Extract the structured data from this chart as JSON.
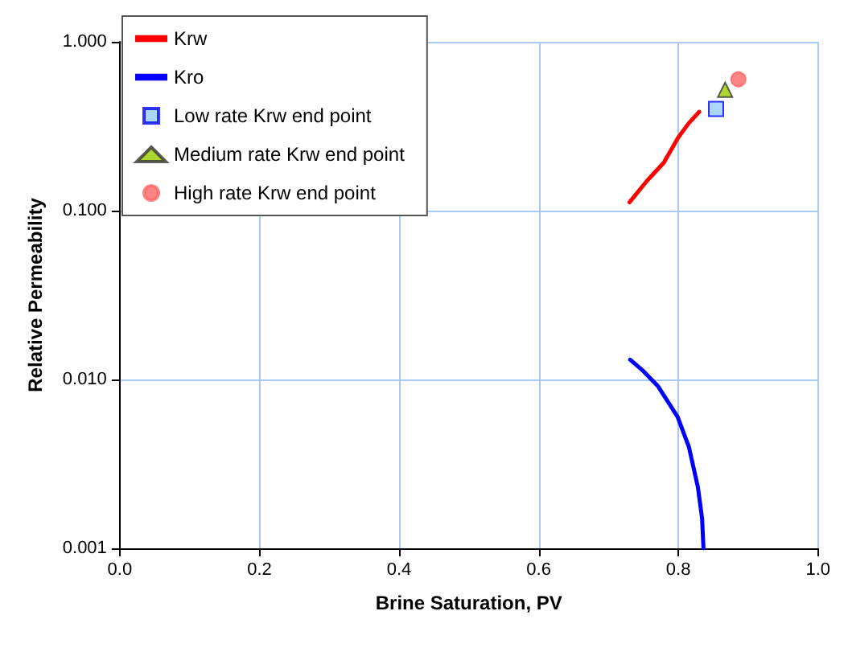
{
  "chart_data": {
    "type": "line",
    "xlabel": "Brine Saturation, PV",
    "ylabel": "Relative Permeability",
    "log": "y",
    "grid": true,
    "legend": "top left",
    "xlim": [
      0,
      1
    ],
    "xticks": [
      {
        "value": 0,
        "label": "0.0"
      },
      {
        "value": 0.2,
        "label": "0.2"
      },
      {
        "value": 0.4,
        "label": "0.4"
      },
      {
        "value": 0.6,
        "label": "0.6"
      },
      {
        "value": 0.8,
        "label": "0.8"
      },
      {
        "value": 1,
        "label": "1.0"
      }
    ],
    "ylim": [
      0.001,
      1
    ],
    "yticks": [
      {
        "value": 0.001,
        "label": "0.001"
      },
      {
        "value": 0.01,
        "label": "0.010"
      },
      {
        "value": 0.1,
        "label": "0.100"
      },
      {
        "value": 1,
        "label": "1.000"
      }
    ],
    "series": [
      {
        "name": "Krw",
        "color": "#ff0000",
        "marker": "none",
        "x": [
          0.73,
          0.755,
          0.779,
          0.8,
          0.815,
          0.83
        ],
        "values": [
          0.112,
          0.15,
          0.192,
          0.272,
          0.33,
          0.385
        ]
      },
      {
        "name": "Kro",
        "color": "#0000ff",
        "marker": "none",
        "x": [
          0.731,
          0.75,
          0.771,
          0.799,
          0.815,
          0.828,
          0.834,
          0.836
        ],
        "values": [
          0.0131,
          0.0112,
          0.0091,
          0.006,
          0.004,
          0.0023,
          0.0015,
          0.001
        ]
      },
      {
        "name": "Low rate Krw end point",
        "type": "scatter",
        "color": "#99ccff",
        "marker": "square",
        "x": [
          0.854
        ],
        "values": [
          0.4
        ]
      },
      {
        "name": "Medium rate Krw end point",
        "type": "scatter",
        "color": "#99cc00",
        "marker": "triangle",
        "x": [
          0.867
        ],
        "values": [
          0.52
        ]
      },
      {
        "name": "High rate Krw end point",
        "type": "scatter",
        "color": "#ff6666",
        "marker": "circle",
        "x": [
          0.886
        ],
        "values": [
          0.6
        ]
      }
    ]
  }
}
